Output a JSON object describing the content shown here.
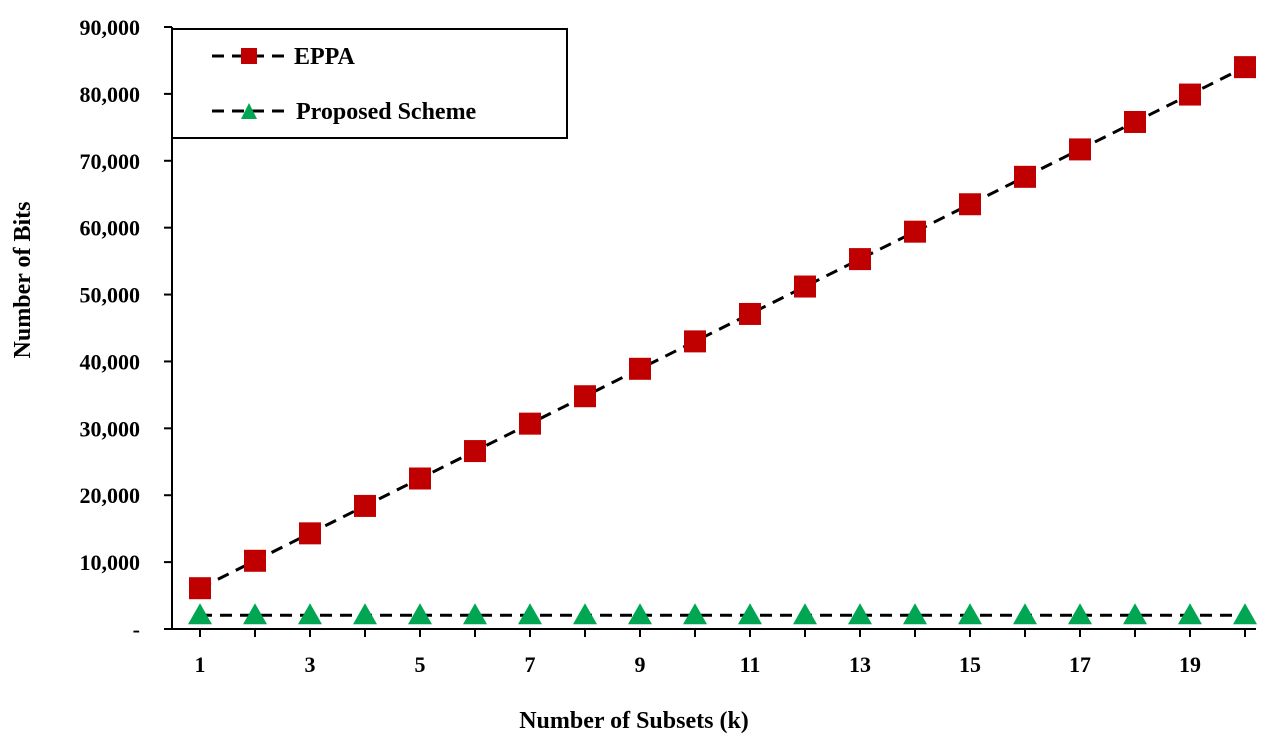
{
  "chart_data": {
    "type": "line",
    "xlabel": "Number of Subsets (k)",
    "ylabel": "Number of Bits",
    "x": [
      1,
      2,
      3,
      4,
      5,
      6,
      7,
      8,
      9,
      10,
      11,
      12,
      13,
      14,
      15,
      16,
      17,
      18,
      19,
      20
    ],
    "xticks": [
      "1",
      "3",
      "5",
      "7",
      "9",
      "11",
      "13",
      "15",
      "17",
      "19"
    ],
    "xtick_values": [
      1,
      3,
      5,
      7,
      9,
      11,
      13,
      15,
      17,
      19
    ],
    "yticks": [
      "-",
      "10,000",
      "20,000",
      "30,000",
      "40,000",
      "50,000",
      "60,000",
      "70,000",
      "80,000",
      "90,000"
    ],
    "ytick_values": [
      0,
      10000,
      20000,
      30000,
      40000,
      50000,
      60000,
      70000,
      80000,
      90000
    ],
    "ylim": [
      0,
      90000
    ],
    "legend_position": "top-left",
    "grid": false,
    "series": [
      {
        "name": "EPPA",
        "marker": "square",
        "color": "#c00000",
        "line": "dashed",
        "values": [
          6100,
          10200,
          14300,
          18400,
          22500,
          26600,
          30700,
          34800,
          38900,
          43000,
          47100,
          51200,
          55300,
          59400,
          63500,
          67600,
          71700,
          75800,
          79900,
          84000
        ]
      },
      {
        "name": "Proposed Scheme",
        "marker": "triangle",
        "color": "#00a651",
        "line": "dashed",
        "values": [
          2048,
          2048,
          2048,
          2048,
          2048,
          2048,
          2048,
          2048,
          2048,
          2048,
          2048,
          2048,
          2048,
          2048,
          2048,
          2048,
          2048,
          2048,
          2048,
          2048
        ]
      }
    ]
  }
}
